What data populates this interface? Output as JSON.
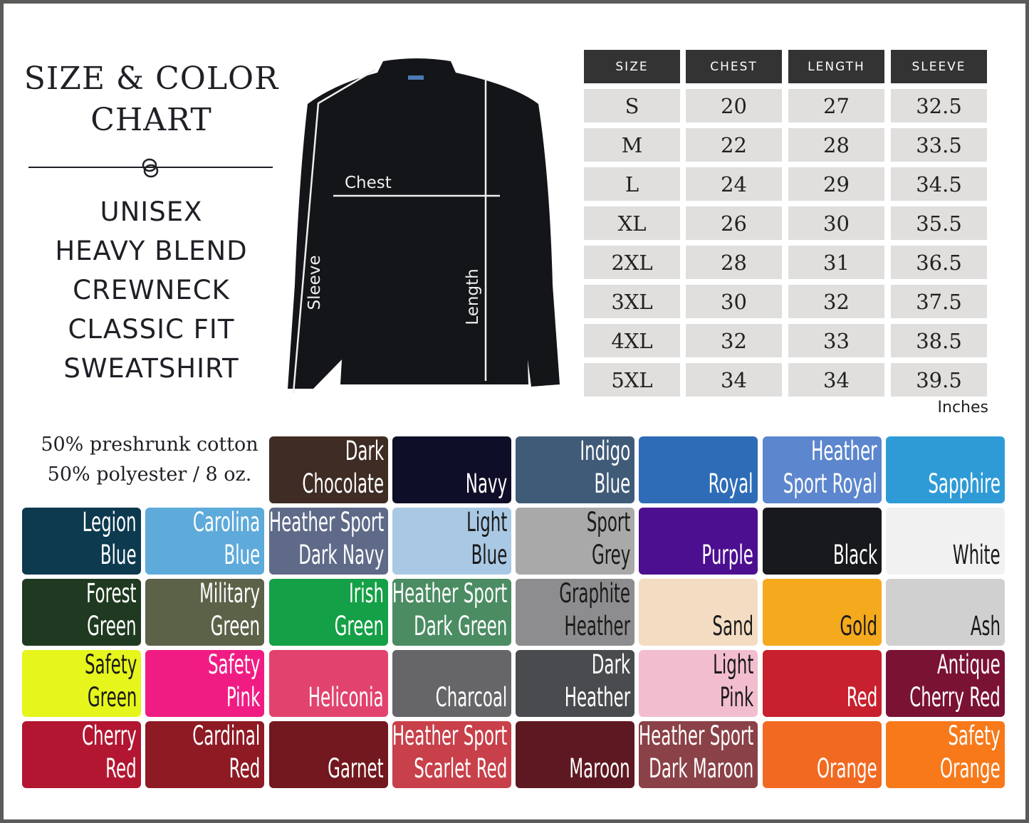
{
  "header": {
    "title_lines": [
      "SIZE & COLOR",
      "CHART"
    ],
    "product_lines": [
      "UNISEX",
      "HEAVY BLEND",
      "CREWNECK",
      "CLASSIC FIT",
      "SWEATSHIRT"
    ]
  },
  "diagram": {
    "chest": "Chest",
    "sleeve": "Sleeve",
    "length": "Length"
  },
  "fabric": {
    "line1": "50% preshrunk cotton",
    "line2": "50% polyester / 8 oz."
  },
  "size_table": {
    "headers": [
      "SIZE",
      "CHEST",
      "LENGTH",
      "SLEEVE"
    ],
    "rows": [
      [
        "S",
        "20",
        "27",
        "32.5"
      ],
      [
        "M",
        "22",
        "28",
        "33.5"
      ],
      [
        "L",
        "24",
        "29",
        "34.5"
      ],
      [
        "XL",
        "26",
        "30",
        "35.5"
      ],
      [
        "2XL",
        "28",
        "31",
        "36.5"
      ],
      [
        "3XL",
        "30",
        "32",
        "37.5"
      ],
      [
        "4XL",
        "32",
        "33",
        "38.5"
      ],
      [
        "5XL",
        "34",
        "34",
        "39.5"
      ]
    ],
    "unit": "Inches"
  },
  "swatches": [
    [
      null,
      null,
      {
        "l": [
          "Dark",
          "Chocolate"
        ],
        "c": "#3f2c24",
        "t": "#fff"
      },
      {
        "l": [
          "",
          "Navy"
        ],
        "c": "#0e0e28",
        "t": "#fff"
      },
      {
        "l": [
          "Indigo",
          "Blue"
        ],
        "c": "#405b78",
        "t": "#fff"
      },
      {
        "l": [
          "",
          "Royal"
        ],
        "c": "#2e6cb7",
        "t": "#fff"
      },
      {
        "l": [
          "Heather",
          "Sport Royal"
        ],
        "c": "#5c86cd",
        "t": "#fff"
      },
      {
        "l": [
          "",
          "Sapphire"
        ],
        "c": "#2f9bd6",
        "t": "#fff"
      }
    ],
    [
      {
        "l": [
          "Legion",
          "Blue"
        ],
        "c": "#0d3a4f",
        "t": "#fff"
      },
      {
        "l": [
          "Carolina",
          "Blue"
        ],
        "c": "#5eaadb",
        "t": "#fff"
      },
      {
        "l": [
          "Heather Sport",
          "Dark Navy"
        ],
        "c": "#5f6a88",
        "t": "#fff"
      },
      {
        "l": [
          "Light",
          "Blue"
        ],
        "c": "#a9c8e3",
        "t": "#1a1a1a"
      },
      {
        "l": [
          "Sport",
          "Grey"
        ],
        "c": "#a9a9a9",
        "t": "#1a1a1a"
      },
      {
        "l": [
          "",
          "Purple"
        ],
        "c": "#4c0f90",
        "t": "#fff"
      },
      {
        "l": [
          "",
          "Black"
        ],
        "c": "#18191d",
        "t": "#fff"
      },
      {
        "l": [
          "",
          "White"
        ],
        "c": "#f1f1f1",
        "t": "#1a1a1a"
      }
    ],
    [
      {
        "l": [
          "Forest",
          "Green"
        ],
        "c": "#1f3a20",
        "t": "#fff"
      },
      {
        "l": [
          "Military",
          "Green"
        ],
        "c": "#5c6248",
        "t": "#fff"
      },
      {
        "l": [
          "Irish",
          "Green"
        ],
        "c": "#14a046",
        "t": "#fff"
      },
      {
        "l": [
          "Heather Sport",
          "Dark Green"
        ],
        "c": "#4b8c63",
        "t": "#fff"
      },
      {
        "l": [
          "Graphite",
          "Heather"
        ],
        "c": "#8d8d8f",
        "t": "#1a1a1a"
      },
      {
        "l": [
          "",
          "Sand"
        ],
        "c": "#f4dcc2",
        "t": "#1a1a1a"
      },
      {
        "l": [
          "",
          "Gold"
        ],
        "c": "#f5a91d",
        "t": "#1a1a1a"
      },
      {
        "l": [
          "",
          "Ash"
        ],
        "c": "#d0d0d0",
        "t": "#1a1a1a"
      }
    ],
    [
      {
        "l": [
          "Safety",
          "Green"
        ],
        "c": "#e6f51c",
        "t": "#1a1a1a"
      },
      {
        "l": [
          "Safety",
          "Pink"
        ],
        "c": "#f01c83",
        "t": "#fff"
      },
      {
        "l": [
          "",
          "Heliconia"
        ],
        "c": "#e1436e",
        "t": "#fff"
      },
      {
        "l": [
          "",
          "Charcoal"
        ],
        "c": "#666668",
        "t": "#fff"
      },
      {
        "l": [
          "Dark",
          "Heather"
        ],
        "c": "#4a4b4e",
        "t": "#fff"
      },
      {
        "l": [
          "Light",
          "Pink"
        ],
        "c": "#f3bdd0",
        "t": "#1a1a1a"
      },
      {
        "l": [
          "",
          "Red"
        ],
        "c": "#c8202e",
        "t": "#fff"
      },
      {
        "l": [
          "Antique",
          "Cherry Red"
        ],
        "c": "#7a1234",
        "t": "#fff"
      }
    ],
    [
      {
        "l": [
          "Cherry",
          "Red"
        ],
        "c": "#b21631",
        "t": "#fff"
      },
      {
        "l": [
          "Cardinal",
          "Red"
        ],
        "c": "#8e1a24",
        "t": "#fff"
      },
      {
        "l": [
          "",
          "Garnet"
        ],
        "c": "#72181e",
        "t": "#fff"
      },
      {
        "l": [
          "Heather Sport",
          "Scarlet Red"
        ],
        "c": "#c7404a",
        "t": "#fff"
      },
      {
        "l": [
          "",
          "Maroon"
        ],
        "c": "#5e1821",
        "t": "#fff"
      },
      {
        "l": [
          "Heather Sport",
          "Dark Maroon"
        ],
        "c": "#8a4147",
        "t": "#fff"
      },
      {
        "l": [
          "",
          "Orange"
        ],
        "c": "#f26a22",
        "t": "#fff"
      },
      {
        "l": [
          "Safety",
          "Orange"
        ],
        "c": "#f7791a",
        "t": "#fff"
      }
    ]
  ]
}
